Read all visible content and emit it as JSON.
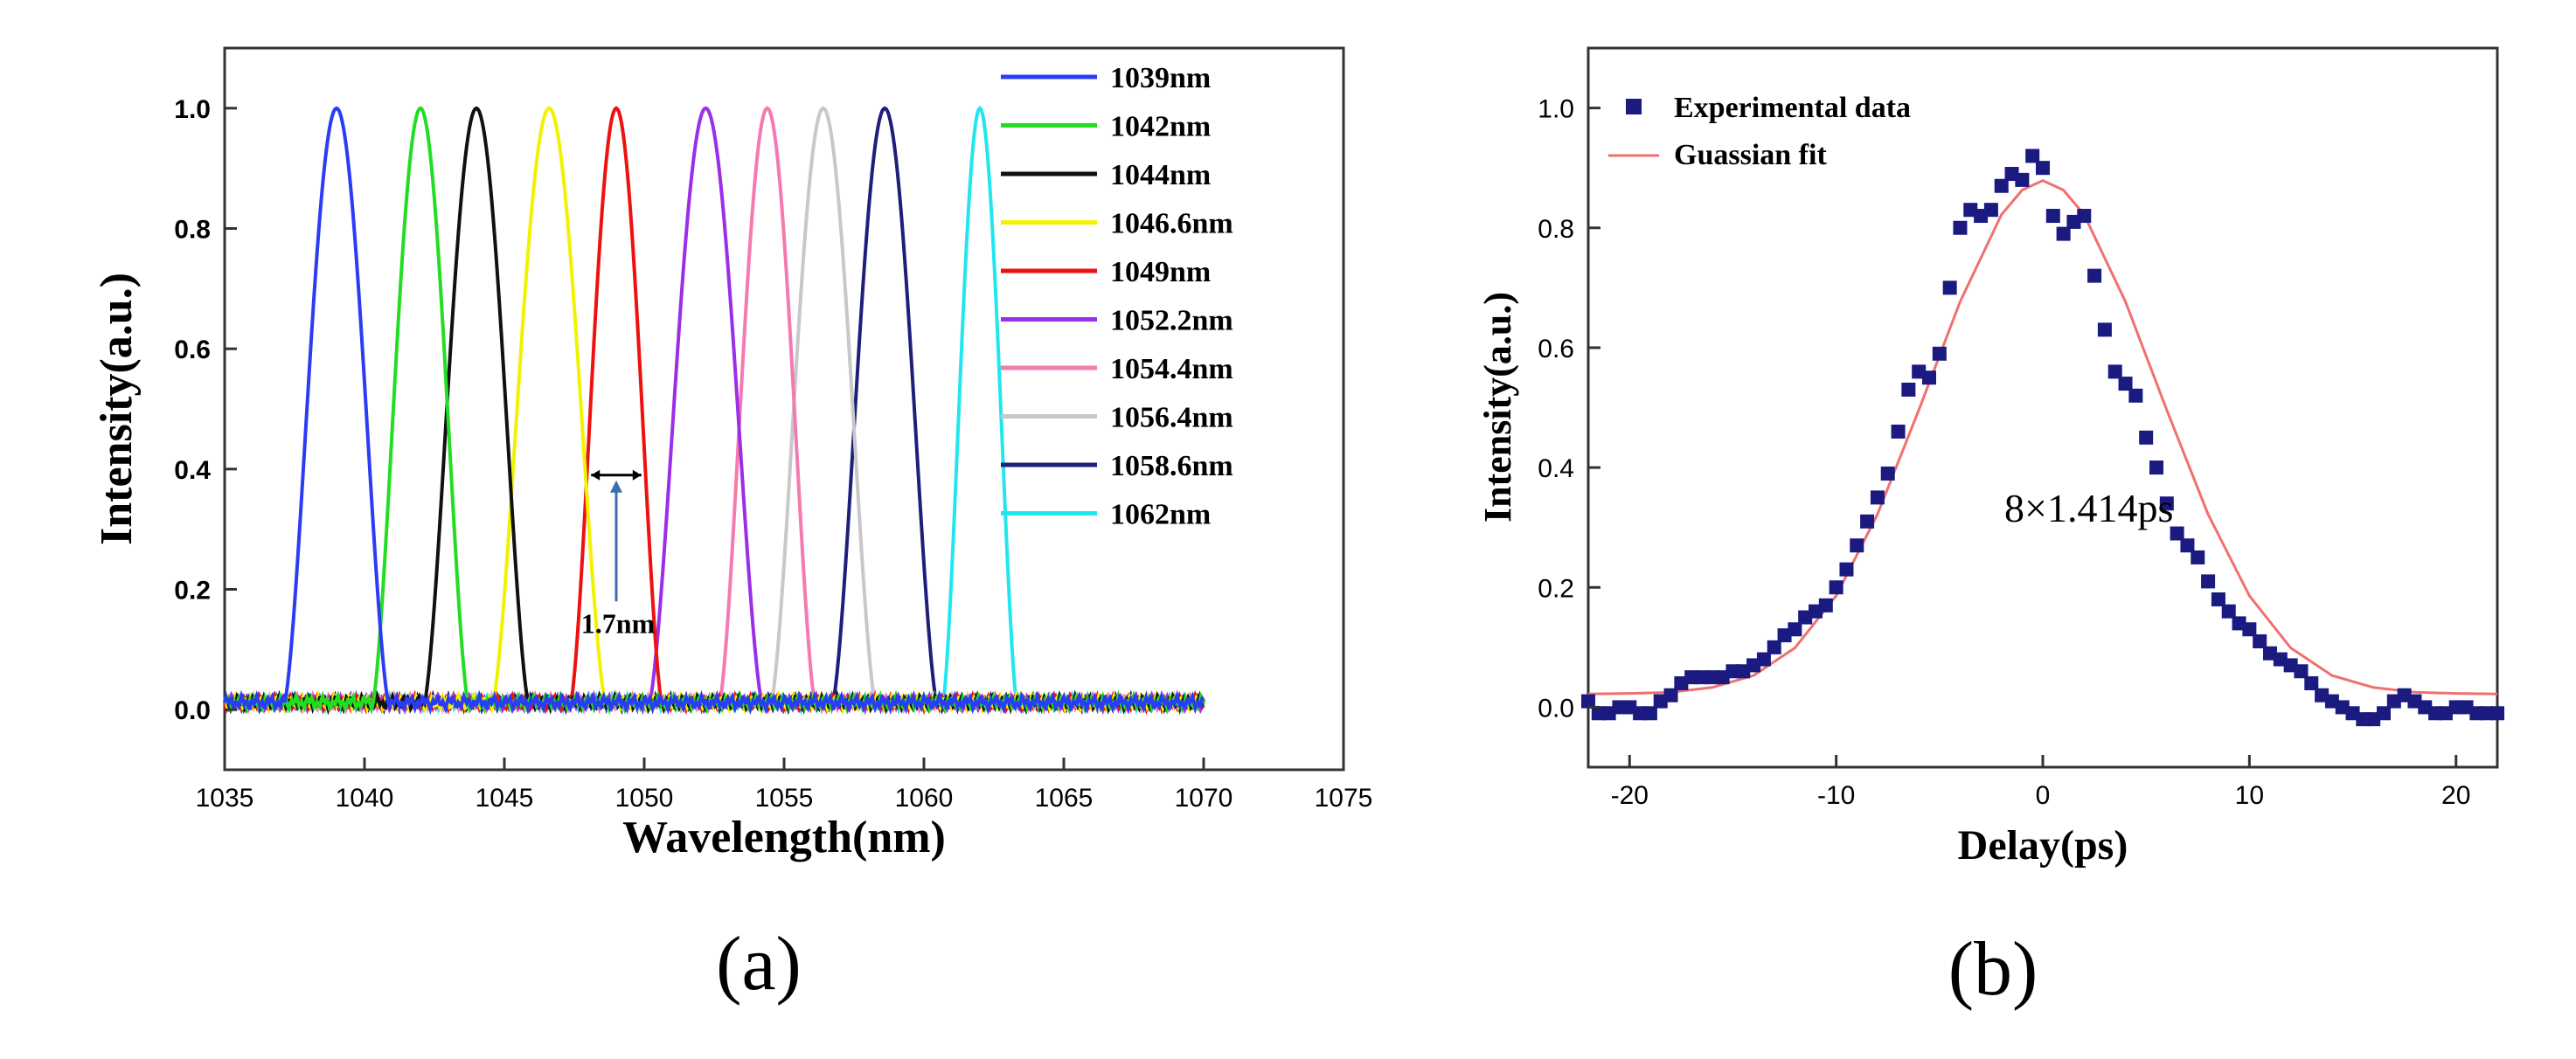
{
  "chart_data": [
    {
      "type": "line",
      "title": "",
      "xlabel": "Wavelength(nm)",
      "ylabel": "Intensity(a.u.)",
      "xlim": [
        1035,
        1075
      ],
      "ylim": [
        -0.1,
        1.1
      ],
      "xticks": [
        1035,
        1040,
        1045,
        1050,
        1055,
        1060,
        1065,
        1070,
        1075
      ],
      "yticks": [
        "0.0",
        "0.2",
        "0.4",
        "0.6",
        "0.8",
        "1.0"
      ],
      "ytick_values": [
        0,
        0.2,
        0.4,
        0.6,
        0.8,
        1.0
      ],
      "legend_position": "top-right",
      "series": [
        {
          "name": "1039nm",
          "color": "#2b3cf5",
          "center": 1039.0,
          "width": 2.4
        },
        {
          "name": "1042nm",
          "color": "#22dd22",
          "center": 1042.0,
          "width": 2.2
        },
        {
          "name": "1044nm",
          "color": "#111111",
          "center": 1044.0,
          "width": 2.4
        },
        {
          "name": "1046.6nm",
          "color": "#f2f200",
          "center": 1046.6,
          "width": 2.6
        },
        {
          "name": "1049nm",
          "color": "#ee1111",
          "center": 1049.0,
          "width": 2.1
        },
        {
          "name": "1052.2nm",
          "color": "#9b2ee8",
          "center": 1052.2,
          "width": 2.6
        },
        {
          "name": "1054.4nm",
          "color": "#f47ab0",
          "center": 1054.4,
          "width": 2.2
        },
        {
          "name": "1056.4nm",
          "color": "#c8c8c8",
          "center": 1056.4,
          "width": 2.4
        },
        {
          "name": "1058.6nm",
          "color": "#1f1f7a",
          "center": 1058.6,
          "width": 2.4
        },
        {
          "name": "1062nm",
          "color": "#22e6ee",
          "center": 1062.0,
          "width": 1.7
        }
      ],
      "annotation": {
        "text": "1.7nm",
        "x1": 1048.1,
        "x2": 1049.9,
        "y": 0.39,
        "arrow_from_y": 0.18
      }
    },
    {
      "type": "scatter",
      "title": "",
      "xlabel": "Delay(ps)",
      "ylabel": "Intensity(a.u.)",
      "xlim": [
        -22,
        22
      ],
      "ylim": [
        -0.1,
        1.1
      ],
      "xticks": [
        "-20",
        "-10",
        "0",
        "10",
        "20"
      ],
      "xtick_values": [
        -20,
        -10,
        0,
        10,
        20
      ],
      "yticks": [
        "0.0",
        "0.2",
        "0.4",
        "0.6",
        "0.8",
        "1.0"
      ],
      "ytick_values": [
        0,
        0.2,
        0.4,
        0.6,
        0.8,
        1.0
      ],
      "legend_position": "top-left",
      "series": [
        {
          "name": "Experimental data",
          "color": "#1a1a80",
          "x": [
            -22,
            -21.5,
            -21,
            -20.5,
            -20,
            -19.5,
            -19,
            -18.5,
            -18,
            -17.5,
            -17,
            -16.5,
            -16,
            -15.5,
            -15,
            -14.5,
            -14,
            -13.5,
            -13,
            -12.5,
            -12,
            -11.5,
            -11,
            -10.5,
            -10,
            -9.5,
            -9,
            -8.5,
            -8,
            -7.5,
            -7,
            -6.5,
            -6,
            -5.5,
            -5,
            -4.5,
            -4,
            -3.5,
            -3,
            -2.5,
            -2,
            -1.5,
            -1,
            -0.5,
            0,
            0.5,
            1,
            1.5,
            2,
            2.5,
            3,
            3.5,
            4,
            4.5,
            5,
            5.5,
            6,
            6.5,
            7,
            7.5,
            8,
            8.5,
            9,
            9.5,
            10,
            10.5,
            11,
            11.5,
            12,
            12.5,
            13,
            13.5,
            14,
            14.5,
            15,
            15.5,
            16,
            16.5,
            17,
            17.5,
            18,
            18.5,
            19,
            19.5,
            20,
            20.5,
            21,
            21.5,
            22
          ],
          "y": [
            0.01,
            -0.01,
            -0.01,
            0.0,
            0.0,
            -0.01,
            -0.01,
            0.01,
            0.02,
            0.04,
            0.05,
            0.05,
            0.05,
            0.05,
            0.06,
            0.06,
            0.07,
            0.08,
            0.1,
            0.12,
            0.13,
            0.15,
            0.16,
            0.17,
            0.2,
            0.23,
            0.27,
            0.31,
            0.35,
            0.39,
            0.46,
            0.53,
            0.56,
            0.55,
            0.59,
            0.7,
            0.8,
            0.83,
            0.82,
            0.83,
            0.87,
            0.89,
            0.88,
            0.92,
            0.9,
            0.82,
            0.79,
            0.81,
            0.82,
            0.72,
            0.63,
            0.56,
            0.54,
            0.52,
            0.45,
            0.4,
            0.34,
            0.29,
            0.27,
            0.25,
            0.21,
            0.18,
            0.16,
            0.14,
            0.13,
            0.11,
            0.09,
            0.08,
            0.07,
            0.06,
            0.04,
            0.02,
            0.01,
            0.0,
            -0.01,
            -0.02,
            -0.02,
            -0.01,
            0.01,
            0.02,
            0.01,
            0.0,
            -0.01,
            -0.01,
            0.0,
            0.0,
            -0.01,
            -0.01,
            -0.01
          ]
        },
        {
          "name": "Guassian fit",
          "color": "#f07070",
          "type": "line",
          "x": [
            -22,
            -20,
            -18,
            -16,
            -14,
            -12,
            -10,
            -8,
            -6,
            -4,
            -2,
            -1,
            0,
            1,
            2,
            4,
            6,
            8,
            10,
            12,
            14,
            16,
            18,
            20,
            22
          ],
          "y": [
            0.022,
            0.023,
            0.025,
            0.033,
            0.053,
            0.099,
            0.186,
            0.322,
            0.496,
            0.677,
            0.822,
            0.863,
            0.879,
            0.863,
            0.822,
            0.677,
            0.496,
            0.322,
            0.186,
            0.099,
            0.053,
            0.033,
            0.025,
            0.023,
            0.022
          ]
        }
      ],
      "annotation": {
        "text": "8×1.414ps"
      }
    }
  ],
  "panel_labels": {
    "a": "(a)",
    "b": "(b)"
  }
}
